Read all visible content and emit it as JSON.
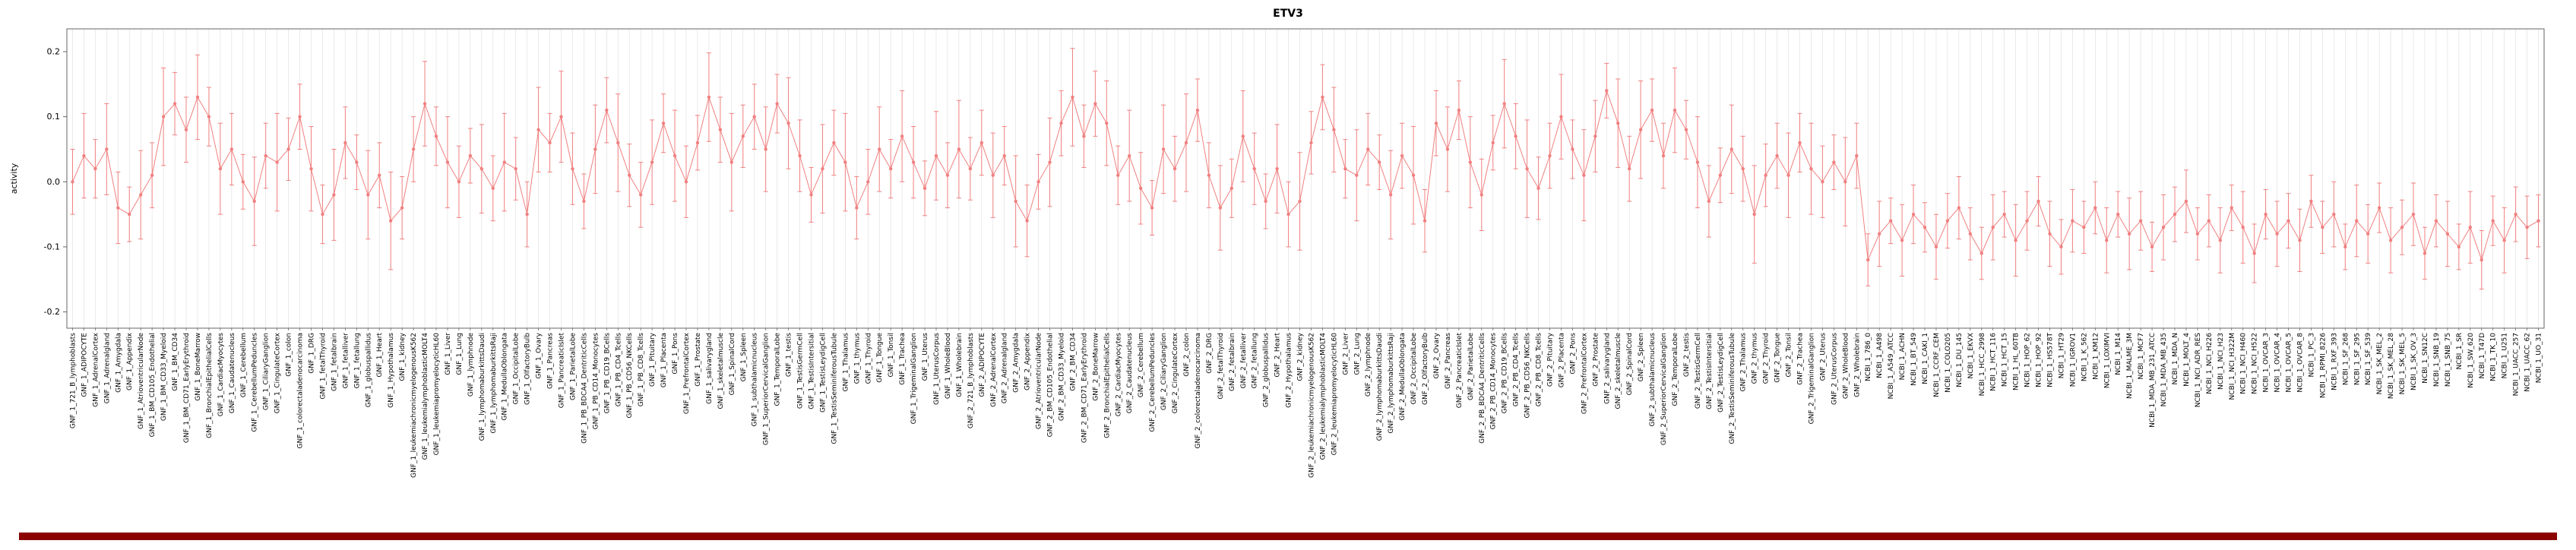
{
  "chart_data": {
    "type": "line",
    "title": "ETV3",
    "ylabel": "activity",
    "xlabel": "",
    "ylim": [
      -0.225,
      0.235
    ],
    "yticks": [
      "-0.2",
      "-0.1",
      "0.0",
      "0.1",
      "0.2"
    ],
    "legend": "none",
    "grid": "vertical-per-category",
    "marker": "point-with-error-bars",
    "colors": {
      "series": "#F08080",
      "grid": "#DDDDDD",
      "frame": "#666666",
      "text": "#000000",
      "bottom_bar": "#8B0000",
      "background": "#FFFFFF"
    },
    "groups": [
      {
        "prefix": "GNF_1_",
        "source": "gnf_tissues"
      },
      {
        "prefix": "GNF_2_",
        "source": "gnf_tissues"
      },
      {
        "prefix": "NCBI_1_",
        "source": "nci_lines"
      }
    ],
    "gnf_tissues": [
      "721_B_lymphoblasts",
      "ADIPOCYTE",
      "AdrenalCortex",
      "Adrenalgland",
      "Amygdala",
      "Appendix",
      "AtrioventricularNode",
      "BM_CD105_Endothelial",
      "BM_CD33_Myeloid",
      "BM_CD34",
      "BM_CD71_EarlyErythroid",
      "BoneMarrow",
      "BronchialEpithelialCells",
      "CardiacMyocytes",
      "Caudatenucleus",
      "Cerebellum",
      "CerebellumPeduncles",
      "CiliaryGanglion",
      "CingulateCortex",
      "colon",
      "colorectaladenocarcinoma",
      "DRG",
      "fetalThyroid",
      "fetalbrain",
      "fetalliver",
      "fetallung",
      "globuspallidus",
      "Heart",
      "Hypothalamus",
      "kidney",
      "leukemiachronicmyelogenousK562",
      "leukemialymphoblasticMOLT4",
      "leukemiapromyelocyticHL60",
      "Liver",
      "Lung",
      "lymphnode",
      "lymphomaburkittsDaudi",
      "lymphomaburkittsRaji",
      "MedullaOblongata",
      "OccipitalLobe",
      "OlfactoryBulb",
      "Ovary",
      "Pancreas",
      "PancreaticIslet",
      "ParietalLobe",
      "PB_BDCA4_DentriticCells",
      "PB_CD14_Monocytes",
      "PB_CD19_BCells",
      "PB_CD4_Tcells",
      "PB_CD56_NKCells",
      "PB_CD8_Tcells",
      "Pituitary",
      "Placenta",
      "Pons",
      "PrefrontalCortex",
      "Prostate",
      "salivarygland",
      "skeletalmuscle",
      "SpinalCord",
      "Spleen",
      "subthalamicnucleus",
      "SuperiorCervicalGanglion",
      "TemporalLobe",
      "testis",
      "TestisGermCell",
      "TestisIntersitial",
      "TestisLeydigCell",
      "TestisSeminiferousTubule",
      "Thalamus",
      "thymus",
      "Thyroid",
      "Tongue",
      "Tonsil",
      "Trachea",
      "TrigeminalGanglion",
      "Uterus",
      "UterusCorpus",
      "WholeBlood",
      "Wholebrain"
    ],
    "nci_lines": [
      "786_0",
      "A498",
      "A549_ATCC",
      "ACHN",
      "BT_549",
      "CAKI_1",
      "CCRF_CEM",
      "COLO205",
      "DU_145",
      "EKVX",
      "HCC_2998",
      "HCT_116",
      "HCT_15",
      "HL_60TB",
      "HOP_62",
      "HOP_92",
      "HS578T",
      "HT29",
      "IGROV1",
      "K_562",
      "KM12",
      "LOXIMVI",
      "M14",
      "MALME_3M",
      "MCF7",
      "MDA_MB_231_ATCC",
      "MDA_MB_435",
      "MDA_N",
      "MOLT_4",
      "NCI_ADR_RES",
      "NCI_H226",
      "NCI_H23",
      "NCI_H322M",
      "NCI_H460",
      "NCI_H522",
      "OVCAR_3",
      "OVCAR_4",
      "OVCAR_5",
      "OVCAR_8",
      "PC_3",
      "RPMI_8226",
      "RXF_393",
      "SF_268",
      "SF_295",
      "SF_539",
      "SK_MEL_2",
      "SK_MEL_28",
      "SK_MEL_5",
      "SK_OV_3",
      "SN12C",
      "SNB_19",
      "SNB_75",
      "SR",
      "SW_620",
      "T47D",
      "TK_10",
      "U251",
      "UACC_257",
      "UACC_62",
      "UO_31"
    ],
    "values": [
      0.0,
      0.04,
      0.02,
      0.05,
      -0.04,
      -0.05,
      -0.02,
      0.01,
      0.1,
      0.12,
      0.08,
      0.13,
      0.1,
      0.02,
      0.05,
      0.0,
      -0.03,
      0.04,
      0.03,
      0.05,
      0.1,
      0.02,
      -0.05,
      -0.02,
      0.06,
      0.03,
      -0.02,
      0.01,
      -0.06,
      -0.04,
      0.05,
      0.12,
      0.07,
      0.03,
      0.0,
      0.04,
      0.02,
      -0.01,
      0.03,
      0.02,
      -0.05,
      0.08,
      0.06,
      0.1,
      0.02,
      -0.03,
      0.05,
      0.11,
      0.06,
      0.01,
      -0.02,
      0.03,
      0.09,
      0.04,
      0.0,
      0.06,
      0.13,
      0.08,
      0.03,
      0.07,
      0.1,
      0.05,
      0.12,
      0.09,
      0.04,
      -0.02,
      0.02,
      0.06,
      0.03,
      -0.04,
      0.0,
      0.05,
      0.02,
      0.07,
      0.03,
      -0.01,
      0.04,
      0.01,
      0.05,
      0.02,
      0.06,
      0.01,
      0.04,
      -0.03,
      -0.06,
      0.0,
      0.03,
      0.09,
      0.13,
      0.07,
      0.12,
      0.09,
      0.01,
      0.04,
      -0.01,
      -0.04,
      0.05,
      0.02,
      0.06,
      0.11,
      0.01,
      -0.04,
      -0.01,
      0.07,
      0.02,
      -0.03,
      0.02,
      -0.05,
      -0.03,
      0.06,
      0.13,
      0.08,
      0.02,
      0.01,
      0.05,
      0.03,
      -0.02,
      0.04,
      0.01,
      -0.06,
      0.09,
      0.05,
      0.11,
      0.03,
      -0.02,
      0.06,
      0.12,
      0.07,
      0.02,
      -0.01,
      0.04,
      0.1,
      0.05,
      0.01,
      0.07,
      0.14,
      0.09,
      0.02,
      0.08,
      0.11,
      0.04,
      0.11,
      0.08,
      0.03,
      -0.03,
      0.01,
      0.05,
      0.02,
      -0.05,
      0.01,
      0.04,
      0.01,
      0.06,
      0.02,
      0.0,
      0.03,
      0.0,
      0.04,
      -0.12,
      -0.08,
      -0.06,
      -0.09,
      -0.05,
      -0.07,
      -0.1,
      -0.06,
      -0.04,
      -0.08,
      -0.11,
      -0.07,
      -0.05,
      -0.09,
      -0.06,
      -0.03,
      -0.08,
      -0.1,
      -0.06,
      -0.07,
      -0.04,
      -0.09,
      -0.05,
      -0.08,
      -0.06,
      -0.1,
      -0.07,
      -0.05,
      -0.03,
      -0.08,
      -0.06,
      -0.09,
      -0.04,
      -0.07,
      -0.11,
      -0.05,
      -0.08,
      -0.06,
      -0.09,
      -0.03,
      -0.07,
      -0.05,
      -0.1,
      -0.06,
      -0.08,
      -0.04,
      -0.09,
      -0.07,
      -0.05,
      -0.11,
      -0.06,
      -0.08,
      -0.1,
      -0.07,
      -0.12,
      -0.06,
      -0.09,
      -0.05,
      -0.07,
      -0.06
    ],
    "errors": [
      0.05,
      0.065,
      0.045,
      0.07,
      0.055,
      0.042,
      0.068,
      0.05,
      0.075,
      0.048,
      0.05,
      0.065,
      0.045,
      0.07,
      0.055,
      0.042,
      0.068,
      0.05,
      0.075,
      0.048,
      0.05,
      0.065,
      0.045,
      0.07,
      0.055,
      0.042,
      0.068,
      0.05,
      0.075,
      0.048,
      0.05,
      0.065,
      0.045,
      0.07,
      0.055,
      0.042,
      0.068,
      0.05,
      0.075,
      0.048,
      0.05,
      0.065,
      0.045,
      0.07,
      0.055,
      0.042,
      0.068,
      0.05,
      0.075,
      0.048,
      0.05,
      0.065,
      0.045,
      0.07,
      0.055,
      0.042,
      0.068,
      0.05,
      0.075,
      0.048,
      0.05,
      0.065,
      0.045,
      0.07,
      0.055,
      0.042,
      0.068,
      0.05,
      0.075,
      0.048,
      0.05,
      0.065,
      0.045,
      0.07,
      0.055,
      0.042,
      0.068,
      0.05,
      0.075,
      0.048,
      0.05,
      0.065,
      0.045,
      0.07,
      0.055,
      0.042,
      0.068,
      0.05,
      0.075,
      0.048,
      0.05,
      0.065,
      0.045,
      0.07,
      0.055,
      0.042,
      0.068,
      0.05,
      0.075,
      0.048,
      0.05,
      0.065,
      0.045,
      0.07,
      0.055,
      0.042,
      0.068,
      0.05,
      0.075,
      0.048,
      0.05,
      0.065,
      0.045,
      0.07,
      0.055,
      0.042,
      0.068,
      0.05,
      0.075,
      0.048,
      0.05,
      0.065,
      0.045,
      0.07,
      0.055,
      0.042,
      0.068,
      0.05,
      0.075,
      0.048,
      0.05,
      0.065,
      0.045,
      0.07,
      0.055,
      0.042,
      0.068,
      0.05,
      0.075,
      0.048,
      0.05,
      0.065,
      0.045,
      0.07,
      0.055,
      0.042,
      0.068,
      0.05,
      0.075,
      0.048,
      0.05,
      0.065,
      0.045,
      0.07,
      0.055,
      0.042,
      0.068,
      0.05,
      0.04,
      0.05,
      0.035,
      0.055,
      0.045,
      0.038,
      0.05,
      0.042,
      0.048,
      0.04,
      0.04,
      0.05,
      0.035,
      0.055,
      0.045,
      0.038,
      0.05,
      0.042,
      0.048,
      0.04,
      0.04,
      0.05,
      0.035,
      0.055,
      0.045,
      0.038,
      0.05,
      0.042,
      0.048,
      0.04,
      0.04,
      0.05,
      0.035,
      0.055,
      0.045,
      0.038,
      0.05,
      0.042,
      0.048,
      0.04,
      0.04,
      0.05,
      0.035,
      0.055,
      0.045,
      0.038,
      0.05,
      0.042,
      0.048,
      0.04,
      0.04,
      0.05,
      0.035,
      0.055,
      0.045,
      0.038,
      0.05,
      0.042,
      0.048,
      0.04
    ]
  }
}
